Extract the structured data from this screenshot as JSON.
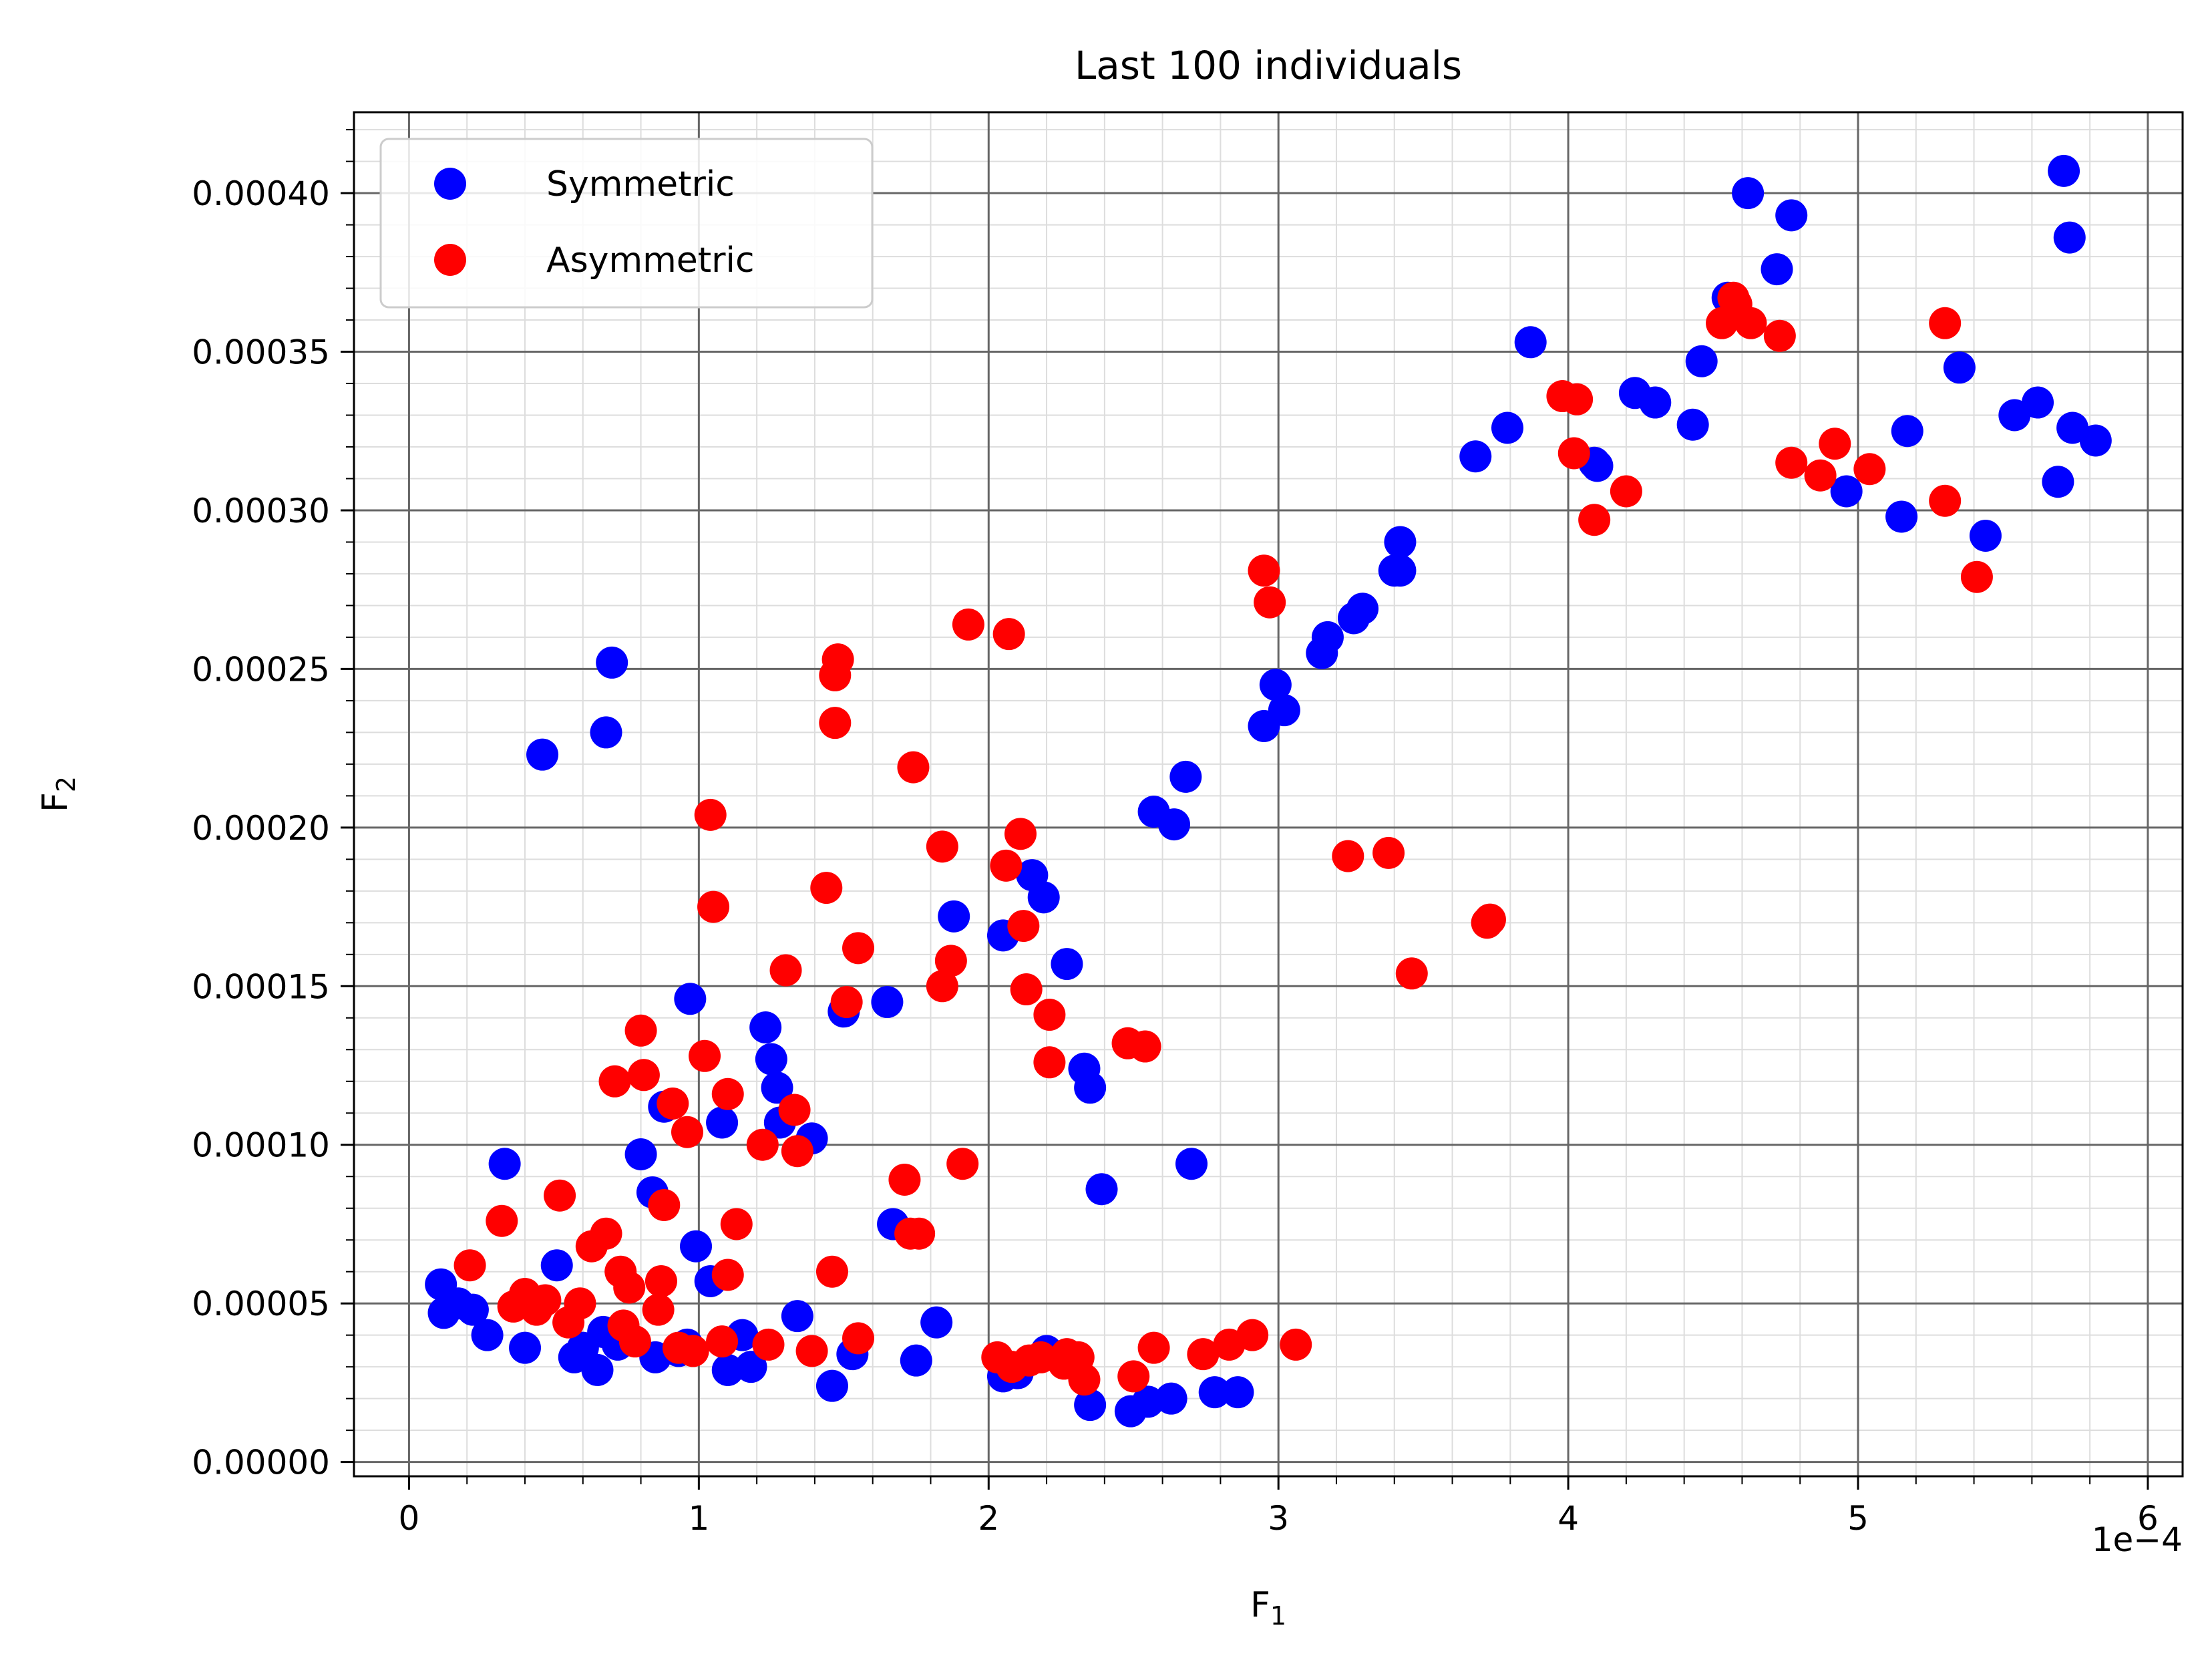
{
  "chart_data": {
    "type": "scatter",
    "title": "Last 100 individuals",
    "xlabel": "F",
    "xlabel_sub": "1",
    "ylabel": "F",
    "ylabel_sub": "2",
    "x_offset_label": "1e−4",
    "xlim": [
      -0.19,
      6.12
    ],
    "ylim": [
      -4.5e-06,
      0.0004255
    ],
    "x_ticks": [
      0,
      1,
      2,
      3,
      4,
      5,
      6
    ],
    "x_tick_labels": [
      "0",
      "1",
      "2",
      "3",
      "4",
      "5",
      "6"
    ],
    "y_ticks": [
      0,
      5e-05,
      0.0001,
      0.00015,
      0.0002,
      0.00025,
      0.0003,
      0.00035,
      0.0004
    ],
    "y_tick_labels": [
      "0.00000",
      "0.00005",
      "0.00010",
      "0.00015",
      "0.00020",
      "0.00025",
      "0.00030",
      "0.00035",
      "0.00040"
    ],
    "grid": true,
    "legend_position": "top-left",
    "series": [
      {
        "name": "Symmetric",
        "color": "#0000ff",
        "points": [
          [
            0.11,
            5.6e-05
          ],
          [
            0.12,
            4.7e-05
          ],
          [
            0.17,
            5e-05
          ],
          [
            0.22,
            4.8e-05
          ],
          [
            0.27,
            4e-05
          ],
          [
            0.33,
            9.4e-05
          ],
          [
            0.4,
            3.6e-05
          ],
          [
            0.46,
            0.000223
          ],
          [
            0.51,
            6.2e-05
          ],
          [
            0.57,
            3.3e-05
          ],
          [
            0.6,
            3.6e-05
          ],
          [
            0.65,
            2.9e-05
          ],
          [
            0.67,
            4.1e-05
          ],
          [
            0.68,
            0.00023
          ],
          [
            0.7,
            0.000252
          ],
          [
            0.72,
            3.7e-05
          ],
          [
            0.8,
            9.7e-05
          ],
          [
            0.84,
            8.5e-05
          ],
          [
            0.85,
            3.3e-05
          ],
          [
            0.88,
            0.000112
          ],
          [
            0.93,
            3.5e-05
          ],
          [
            0.96,
            3.7e-05
          ],
          [
            0.97,
            0.000146
          ],
          [
            0.99,
            6.8e-05
          ],
          [
            1.04,
            5.7e-05
          ],
          [
            1.08,
            0.000107
          ],
          [
            1.1,
            2.9e-05
          ],
          [
            1.15,
            4e-05
          ],
          [
            1.18,
            3e-05
          ],
          [
            1.23,
            0.000137
          ],
          [
            1.25,
            0.000127
          ],
          [
            1.27,
            0.000118
          ],
          [
            1.28,
            0.000107
          ],
          [
            1.34,
            4.6e-05
          ],
          [
            1.39,
            0.000102
          ],
          [
            1.46,
            2.4e-05
          ],
          [
            1.5,
            0.000142
          ],
          [
            1.53,
            3.4e-05
          ],
          [
            1.65,
            0.000145
          ],
          [
            1.67,
            7.5e-05
          ],
          [
            1.75,
            3.2e-05
          ],
          [
            1.82,
            4.4e-05
          ],
          [
            1.88,
            0.000172
          ],
          [
            2.05,
            0.000166
          ],
          [
            2.05,
            2.7e-05
          ],
          [
            2.1,
            2.8e-05
          ],
          [
            2.15,
            0.000185
          ],
          [
            2.19,
            0.000178
          ],
          [
            2.2,
            3.5e-05
          ],
          [
            2.27,
            0.000157
          ],
          [
            2.33,
            0.000124
          ],
          [
            2.35,
            0.000118
          ],
          [
            2.35,
            1.8e-05
          ],
          [
            2.39,
            8.6e-05
          ],
          [
            2.49,
            1.6e-05
          ],
          [
            2.55,
            1.9e-05
          ],
          [
            2.57,
            0.000205
          ],
          [
            2.63,
            2e-05
          ],
          [
            2.64,
            0.000201
          ],
          [
            2.68,
            0.000216
          ],
          [
            2.7,
            9.4e-05
          ],
          [
            2.78,
            2.2e-05
          ],
          [
            2.86,
            2.2e-05
          ],
          [
            2.95,
            0.000232
          ],
          [
            2.99,
            0.000245
          ],
          [
            3.02,
            0.000237
          ],
          [
            3.15,
            0.000255
          ],
          [
            3.17,
            0.00026
          ],
          [
            3.26,
            0.000266
          ],
          [
            3.29,
            0.000269
          ],
          [
            3.4,
            0.000281
          ],
          [
            3.42,
            0.00029
          ],
          [
            3.42,
            0.000281
          ],
          [
            3.68,
            0.000317
          ],
          [
            3.79,
            0.000326
          ],
          [
            3.87,
            0.000353
          ],
          [
            4.09,
            0.000315
          ],
          [
            4.1,
            0.000314
          ],
          [
            4.23,
            0.000337
          ],
          [
            4.3,
            0.000334
          ],
          [
            4.43,
            0.000327
          ],
          [
            4.46,
            0.000347
          ],
          [
            4.55,
            0.000367
          ],
          [
            4.62,
            0.0004
          ],
          [
            4.72,
            0.000376
          ],
          [
            4.77,
            0.000393
          ],
          [
            4.96,
            0.000306
          ],
          [
            5.15,
            0.000298
          ],
          [
            5.17,
            0.000325
          ],
          [
            5.35,
            0.000345
          ],
          [
            5.44,
            0.000292
          ],
          [
            5.54,
            0.00033
          ],
          [
            5.62,
            0.000334
          ],
          [
            5.69,
            0.000309
          ],
          [
            5.71,
            0.000407
          ],
          [
            5.73,
            0.000386
          ],
          [
            5.74,
            0.000326
          ],
          [
            5.82,
            0.000322
          ]
        ]
      },
      {
        "name": "Asymmetric",
        "color": "#ff0000",
        "points": [
          [
            0.21,
            6.2e-05
          ],
          [
            0.32,
            7.6e-05
          ],
          [
            0.36,
            4.9e-05
          ],
          [
            0.4,
            5.3e-05
          ],
          [
            0.44,
            4.8e-05
          ],
          [
            0.47,
            5.1e-05
          ],
          [
            0.52,
            8.4e-05
          ],
          [
            0.55,
            4.4e-05
          ],
          [
            0.59,
            5e-05
          ],
          [
            0.63,
            6.8e-05
          ],
          [
            0.68,
            7.2e-05
          ],
          [
            0.71,
            0.00012
          ],
          [
            0.73,
            6e-05
          ],
          [
            0.74,
            4.3e-05
          ],
          [
            0.76,
            5.5e-05
          ],
          [
            0.78,
            3.8e-05
          ],
          [
            0.8,
            0.000136
          ],
          [
            0.81,
            0.000122
          ],
          [
            0.86,
            4.8e-05
          ],
          [
            0.87,
            5.7e-05
          ],
          [
            0.88,
            8.1e-05
          ],
          [
            0.91,
            0.000113
          ],
          [
            0.93,
            3.6e-05
          ],
          [
            0.96,
            0.000104
          ],
          [
            0.98,
            3.5e-05
          ],
          [
            1.02,
            0.000128
          ],
          [
            1.04,
            0.000204
          ],
          [
            1.05,
            0.000175
          ],
          [
            1.08,
            3.8e-05
          ],
          [
            1.1,
            0.000116
          ],
          [
            1.1,
            5.9e-05
          ],
          [
            1.13,
            7.5e-05
          ],
          [
            1.22,
            0.0001
          ],
          [
            1.24,
            3.7e-05
          ],
          [
            1.3,
            0.000155
          ],
          [
            1.33,
            0.000111
          ],
          [
            1.34,
            9.8e-05
          ],
          [
            1.39,
            3.5e-05
          ],
          [
            1.44,
            0.000181
          ],
          [
            1.46,
            6e-05
          ],
          [
            1.47,
            0.000248
          ],
          [
            1.47,
            0.000233
          ],
          [
            1.48,
            0.000253
          ],
          [
            1.51,
            0.000145
          ],
          [
            1.55,
            0.000162
          ],
          [
            1.55,
            3.9e-05
          ],
          [
            1.71,
            8.9e-05
          ],
          [
            1.73,
            7.2e-05
          ],
          [
            1.74,
            0.000219
          ],
          [
            1.76,
            7.2e-05
          ],
          [
            1.84,
            0.000194
          ],
          [
            1.84,
            0.00015
          ],
          [
            1.87,
            0.000158
          ],
          [
            1.91,
            9.4e-05
          ],
          [
            1.93,
            0.000264
          ],
          [
            2.03,
            3.3e-05
          ],
          [
            2.06,
            0.000188
          ],
          [
            2.07,
            0.000261
          ],
          [
            2.08,
            3e-05
          ],
          [
            2.11,
            0.000198
          ],
          [
            2.12,
            0.000169
          ],
          [
            2.13,
            0.000149
          ],
          [
            2.14,
            3.2e-05
          ],
          [
            2.18,
            3.3e-05
          ],
          [
            2.21,
            0.000141
          ],
          [
            2.21,
            0.000126
          ],
          [
            2.26,
            3.1e-05
          ],
          [
            2.27,
            3.4e-05
          ],
          [
            2.31,
            3.3e-05
          ],
          [
            2.33,
            2.6e-05
          ],
          [
            2.48,
            0.000132
          ],
          [
            2.5,
            2.7e-05
          ],
          [
            2.54,
            0.000131
          ],
          [
            2.57,
            3.6e-05
          ],
          [
            2.74,
            3.4e-05
          ],
          [
            2.83,
            3.7e-05
          ],
          [
            2.91,
            4e-05
          ],
          [
            2.95,
            0.000281
          ],
          [
            2.97,
            0.000271
          ],
          [
            3.06,
            3.7e-05
          ],
          [
            3.24,
            0.000191
          ],
          [
            3.38,
            0.000192
          ],
          [
            3.46,
            0.000154
          ],
          [
            3.72,
            0.00017
          ],
          [
            3.73,
            0.000171
          ],
          [
            3.98,
            0.000336
          ],
          [
            4.02,
            0.000318
          ],
          [
            4.03,
            0.000335
          ],
          [
            4.09,
            0.000297
          ],
          [
            4.2,
            0.000306
          ],
          [
            4.53,
            0.000359
          ],
          [
            4.57,
            0.000367
          ],
          [
            4.58,
            0.000365
          ],
          [
            4.63,
            0.000359
          ],
          [
            4.73,
            0.000355
          ],
          [
            4.77,
            0.000315
          ],
          [
            4.87,
            0.000311
          ],
          [
            4.92,
            0.000321
          ],
          [
            5.04,
            0.000313
          ],
          [
            5.3,
            0.000303
          ],
          [
            5.3,
            0.000359
          ],
          [
            5.41,
            0.000279
          ]
        ]
      }
    ]
  }
}
